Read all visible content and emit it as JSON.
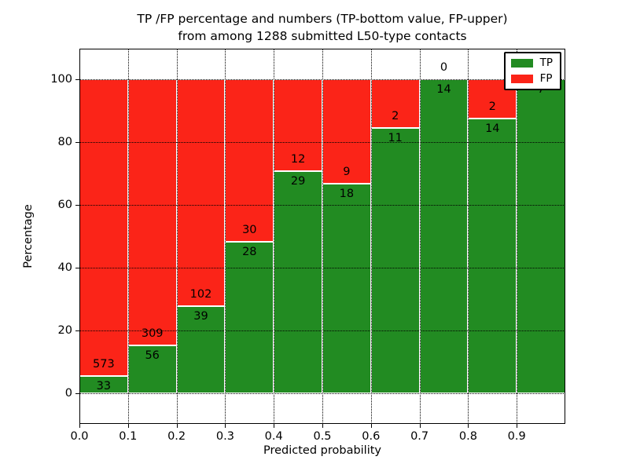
{
  "figure": {
    "title_line1": "TP /FP percentage and numbers (TP-bottom value, FP-upper)",
    "title_line2": "from among 1288 submitted L50-type contacts"
  },
  "axes": {
    "xlabel": "Predicted probability",
    "ylabel": "Percentage",
    "xtick_labels": [
      "0.0",
      "0.1",
      "0.2",
      "0.3",
      "0.4",
      "0.5",
      "0.6",
      "0.7",
      "0.8",
      "0.9"
    ],
    "ytick_values": [
      0,
      20,
      40,
      60,
      80,
      100
    ]
  },
  "legend": {
    "items": [
      {
        "label": "TP",
        "color": "#228B22"
      },
      {
        "label": "FP",
        "color": "#FB2418"
      }
    ]
  },
  "chart_data": {
    "type": "bar",
    "stacked": true,
    "normalized_to_percent": true,
    "title": "TP /FP percentage and numbers (TP-bottom value, FP-upper) from among 1288 submitted L50-type contacts",
    "xlabel": "Predicted probability",
    "ylabel": "Percentage",
    "xlim": [
      0.0,
      1.0
    ],
    "ylim": [
      -10,
      110
    ],
    "grid": "dotted",
    "legend_position": "upper right",
    "bin_width": 0.1,
    "bin_starts": [
      0.0,
      0.1,
      0.2,
      0.3,
      0.4,
      0.5,
      0.6,
      0.7,
      0.8,
      0.9
    ],
    "series": [
      {
        "name": "TP",
        "color": "#228B22",
        "counts": [
          33,
          56,
          39,
          28,
          29,
          18,
          11,
          14,
          14,
          7
        ]
      },
      {
        "name": "FP",
        "color": "#FB2418",
        "counts": [
          573,
          309,
          102,
          30,
          12,
          9,
          2,
          0,
          2,
          0
        ]
      }
    ],
    "tp_percent": [
      5.45,
      15.34,
      27.66,
      48.28,
      70.73,
      66.67,
      84.62,
      100.0,
      87.5,
      100.0
    ],
    "total_contacts": 1288
  }
}
